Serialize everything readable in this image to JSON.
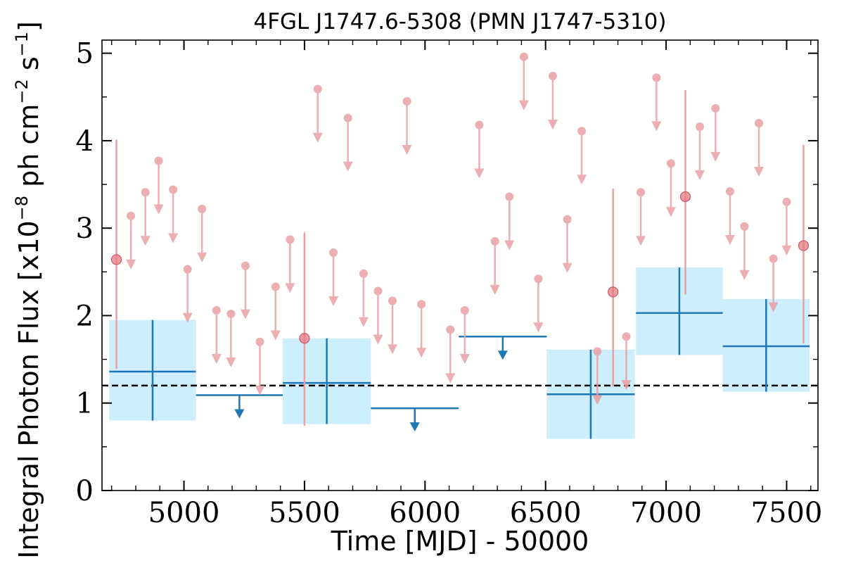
{
  "chart_data": {
    "type": "scatter",
    "title": "4FGL J1747.6-5308 (PMN J1747-5310)",
    "xlabel": "Time [MJD] - 50000",
    "ylabel": {
      "prefix": "Integral Photon Flux [x10",
      "exp1": "−8",
      "mid": " ph cm",
      "exp2": "−2",
      "mid2": " s",
      "exp3": "−1",
      "suffix": "]"
    },
    "xlim": [
      4660,
      7630
    ],
    "ylim": [
      0,
      5.15
    ],
    "xticks": [
      5000,
      5500,
      6000,
      6500,
      7000,
      7500
    ],
    "yticks": [
      0,
      1,
      2,
      3,
      4,
      5
    ],
    "average_flux": 1.2,
    "colors": {
      "short_bins": "#e8a0a4",
      "short_detection": "#e57a80",
      "long_bins": "#1f77b4",
      "long_band": "#cdeefc",
      "average_line": "#000000"
    },
    "series": [
      {
        "type": "upper_limits",
        "x": [
          4780,
          4840,
          4895,
          4955,
          5015,
          5075,
          5135,
          5195,
          5255,
          5315,
          5380,
          5440,
          5555,
          5620,
          5680,
          5745,
          5805,
          5865,
          5925,
          5985,
          6105,
          6165,
          6225,
          6290,
          6350,
          6410,
          6470,
          6530,
          6590,
          6650,
          6715,
          6835,
          6895,
          6960,
          7020,
          7140,
          7205,
          7265,
          7325,
          7385,
          7445,
          7500
        ],
        "y": [
          3.14,
          3.41,
          3.77,
          3.44,
          2.53,
          3.22,
          2.06,
          2.02,
          2.57,
          1.7,
          2.33,
          2.87,
          4.59,
          2.72,
          4.26,
          2.48,
          2.28,
          2.17,
          4.45,
          2.13,
          1.84,
          2.06,
          4.18,
          2.85,
          3.36,
          4.96,
          2.42,
          4.74,
          3.1,
          4.11,
          1.59,
          1.76,
          3.41,
          4.72,
          3.74,
          4.16,
          4.37,
          3.42,
          3.02,
          4.2,
          2.65,
          3.3
        ]
      },
      {
        "type": "detections",
        "x": [
          4720,
          5500,
          6780,
          7080,
          7570
        ],
        "y": [
          2.64,
          1.74,
          2.27,
          3.36,
          2.8
        ],
        "yerr_low": [
          1.25,
          1.0,
          1.08,
          1.12,
          1.12
        ],
        "yerr_high": [
          1.37,
          1.21,
          1.18,
          1.22,
          1.15
        ]
      },
      {
        "type": "long_detections",
        "x0": [
          4690,
          5410,
          6505,
          6875,
          7235
        ],
        "x1": [
          5050,
          5775,
          6870,
          7235,
          7595
        ],
        "y": [
          1.36,
          1.23,
          1.1,
          2.03,
          1.65
        ],
        "low": [
          0.8,
          0.76,
          0.59,
          1.55,
          1.13
        ],
        "high": [
          1.95,
          1.74,
          1.61,
          2.55,
          2.19
        ]
      },
      {
        "type": "long_upper_limits",
        "x0": [
          5050,
          5775,
          6140
        ],
        "x1": [
          5410,
          6140,
          6505
        ],
        "y": [
          1.09,
          0.94,
          1.76
        ]
      }
    ]
  }
}
